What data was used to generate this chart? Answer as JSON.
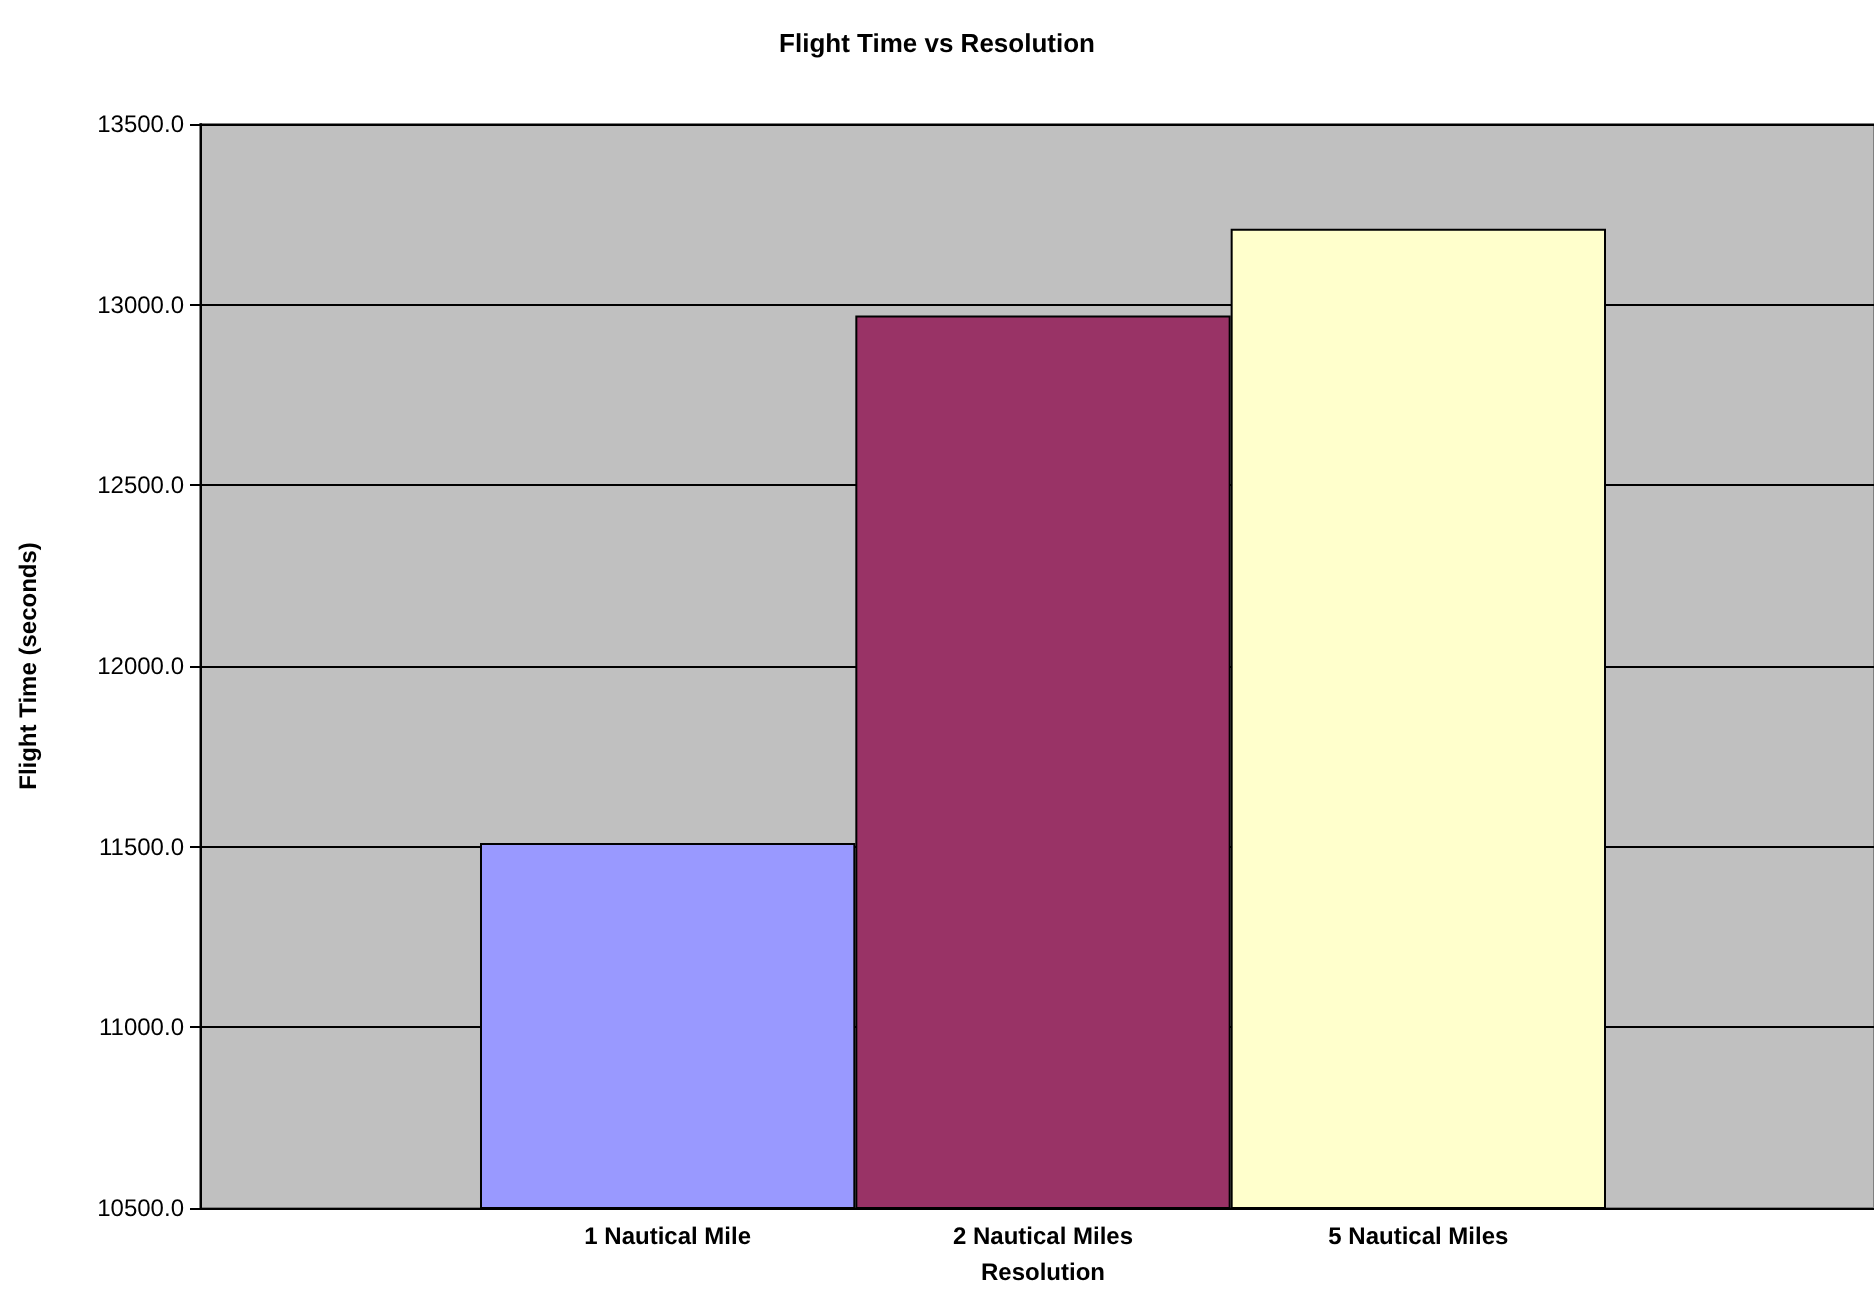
{
  "chart_data": {
    "type": "bar",
    "title": "Flight Time vs Resolution",
    "xlabel": "Resolution",
    "ylabel": "Flight Time (seconds)",
    "categories": [
      "1 Nautical Mile",
      "2 Nautical Miles",
      "5 Nautical Miles"
    ],
    "values": [
      11510,
      12970,
      13210
    ],
    "colors": [
      "#9999ff",
      "#993366",
      "#ffffcc"
    ],
    "ylim": [
      10500,
      13500
    ],
    "yticks": [
      {
        "value": 10500,
        "label": "10500.0"
      },
      {
        "value": 11000,
        "label": "11000.0"
      },
      {
        "value": 11500,
        "label": "11500.0"
      },
      {
        "value": 12000,
        "label": "12000.0"
      },
      {
        "value": 12500,
        "label": "12500.0"
      },
      {
        "value": 13000,
        "label": "13000.0"
      },
      {
        "value": 13500,
        "label": "13500.0"
      }
    ],
    "grid": "y"
  }
}
